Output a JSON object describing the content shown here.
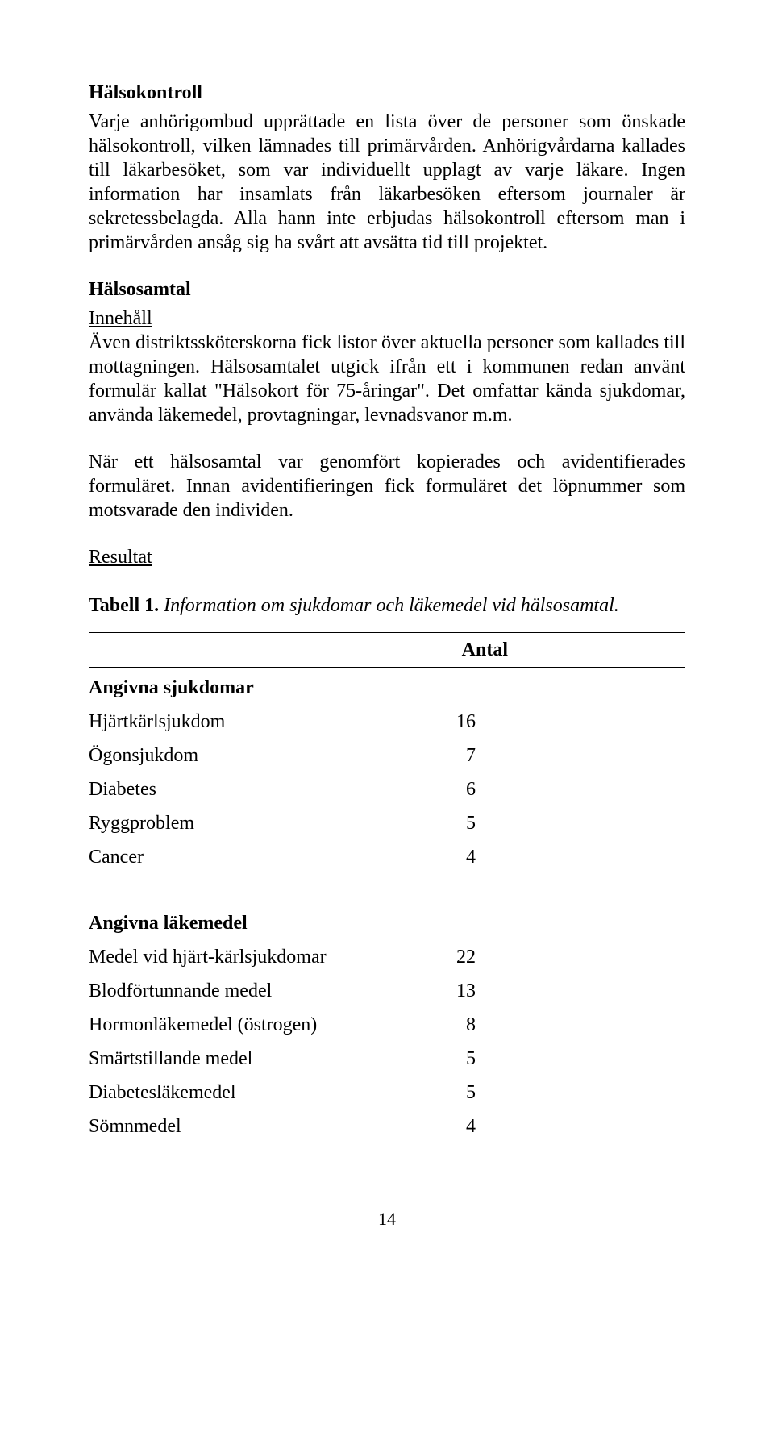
{
  "headings": {
    "halsokontroll": "Hälsokontroll",
    "halsosamtal": "Hälsosamtal",
    "innehall": "Innehåll",
    "resultat": "Resultat"
  },
  "paragraphs": {
    "p1": "Varje anhörigombud upprättade en lista över de personer som önskade hälsokontroll, vilken lämnades till primärvården. Anhörigvårdarna kallades till läkarbesöket, som var individuellt upplagt av varje läkare. Ingen information har insamlats från läkarbesöken eftersom journaler är sekretessbelagda. Alla hann inte erbjudas hälsokontroll eftersom man i primärvården ansåg sig ha svårt att avsätta tid till projektet.",
    "p2": "Även distriktssköterskor­na fick listor över aktuella personer som kallades till mottagningen. Hälsosamtalet utgick ifrån ett i kommunen redan använt formulär kallat \"Hälsokort för 75-åringar\". Det omfattar kända sjukdomar, använda läkemedel, provtagningar, levnadsvanor m.m.",
    "p3": "När ett hälsosamtal var genomfört kopierades och avidentifierades formuläret. Innan avidentifieringen fick formuläret det löpnummer som motsvarade den individen."
  },
  "tableCaption": {
    "label": "Tabell 1",
    "title": "Information om sjukdomar och läkemedel vid hälsosamtal."
  },
  "table": {
    "headerValue": "Antal",
    "section1": "Angivna sjukdomar",
    "section2": "Angivna läkemedel",
    "diseases": [
      {
        "name": "Hjärtkärlsjukdom",
        "value": "16"
      },
      {
        "name": "Ögonsjukdom",
        "value": "7"
      },
      {
        "name": "Diabetes",
        "value": "6"
      },
      {
        "name": "Ryggproblem",
        "value": "5"
      },
      {
        "name": "Cancer",
        "value": "4"
      }
    ],
    "meds": [
      {
        "name": "Medel vid hjärt-kärlsjukdomar",
        "value": "22"
      },
      {
        "name": "Blodförtunnande medel",
        "value": "13"
      },
      {
        "name": "Hormonläkemedel (östrogen)",
        "value": "8"
      },
      {
        "name": "Smärtstillande medel",
        "value": "5"
      },
      {
        "name": "Diabetesläkemedel",
        "value": "5"
      },
      {
        "name": "Sömnmedel",
        "value": "4"
      }
    ]
  },
  "pageNumber": "14",
  "styling": {
    "fontFamily": "Times New Roman",
    "bodyFontSizePt": 24,
    "textColor": "#000000",
    "backgroundColor": "#ffffff",
    "ruleColor": "#000000",
    "ruleWidthPx": 1.5
  }
}
